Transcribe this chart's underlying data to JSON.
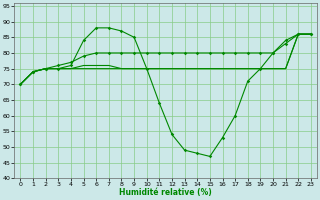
{
  "x": [
    0,
    1,
    2,
    3,
    4,
    5,
    6,
    7,
    8,
    9,
    10,
    11,
    12,
    13,
    14,
    15,
    16,
    17,
    18,
    19,
    20,
    21,
    22,
    23
  ],
  "line_main": [
    70,
    74,
    75,
    75,
    76,
    84,
    88,
    88,
    87,
    85,
    75,
    64,
    54,
    49,
    48,
    47,
    53,
    60,
    71,
    75,
    80,
    84,
    86,
    86
  ],
  "line_avg": [
    70,
    74,
    75,
    76,
    77,
    79,
    80,
    80,
    80,
    80,
    80,
    80,
    80,
    80,
    80,
    80,
    80,
    80,
    80,
    80,
    80,
    83,
    86,
    86
  ],
  "line_flat1": [
    70,
    74,
    75,
    75,
    75,
    76,
    76,
    76,
    75,
    75,
    75,
    75,
    75,
    75,
    75,
    75,
    75,
    75,
    75,
    75,
    75,
    75,
    86,
    86
  ],
  "line_flat2": [
    70,
    74,
    75,
    75,
    75,
    75,
    75,
    75,
    75,
    75,
    75,
    75,
    75,
    75,
    75,
    75,
    75,
    75,
    75,
    75,
    75,
    75,
    86,
    86
  ],
  "bg_color": "#cce8e8",
  "grid_color": "#88cc88",
  "line_color": "#008800",
  "xlabel": "Humidité relative (%)",
  "ylim": [
    40,
    96
  ],
  "yticks": [
    40,
    45,
    50,
    55,
    60,
    65,
    70,
    75,
    80,
    85,
    90,
    95
  ],
  "xticks": [
    0,
    1,
    2,
    3,
    4,
    5,
    6,
    7,
    8,
    9,
    10,
    11,
    12,
    13,
    14,
    15,
    16,
    17,
    18,
    19,
    20,
    21,
    22,
    23
  ]
}
